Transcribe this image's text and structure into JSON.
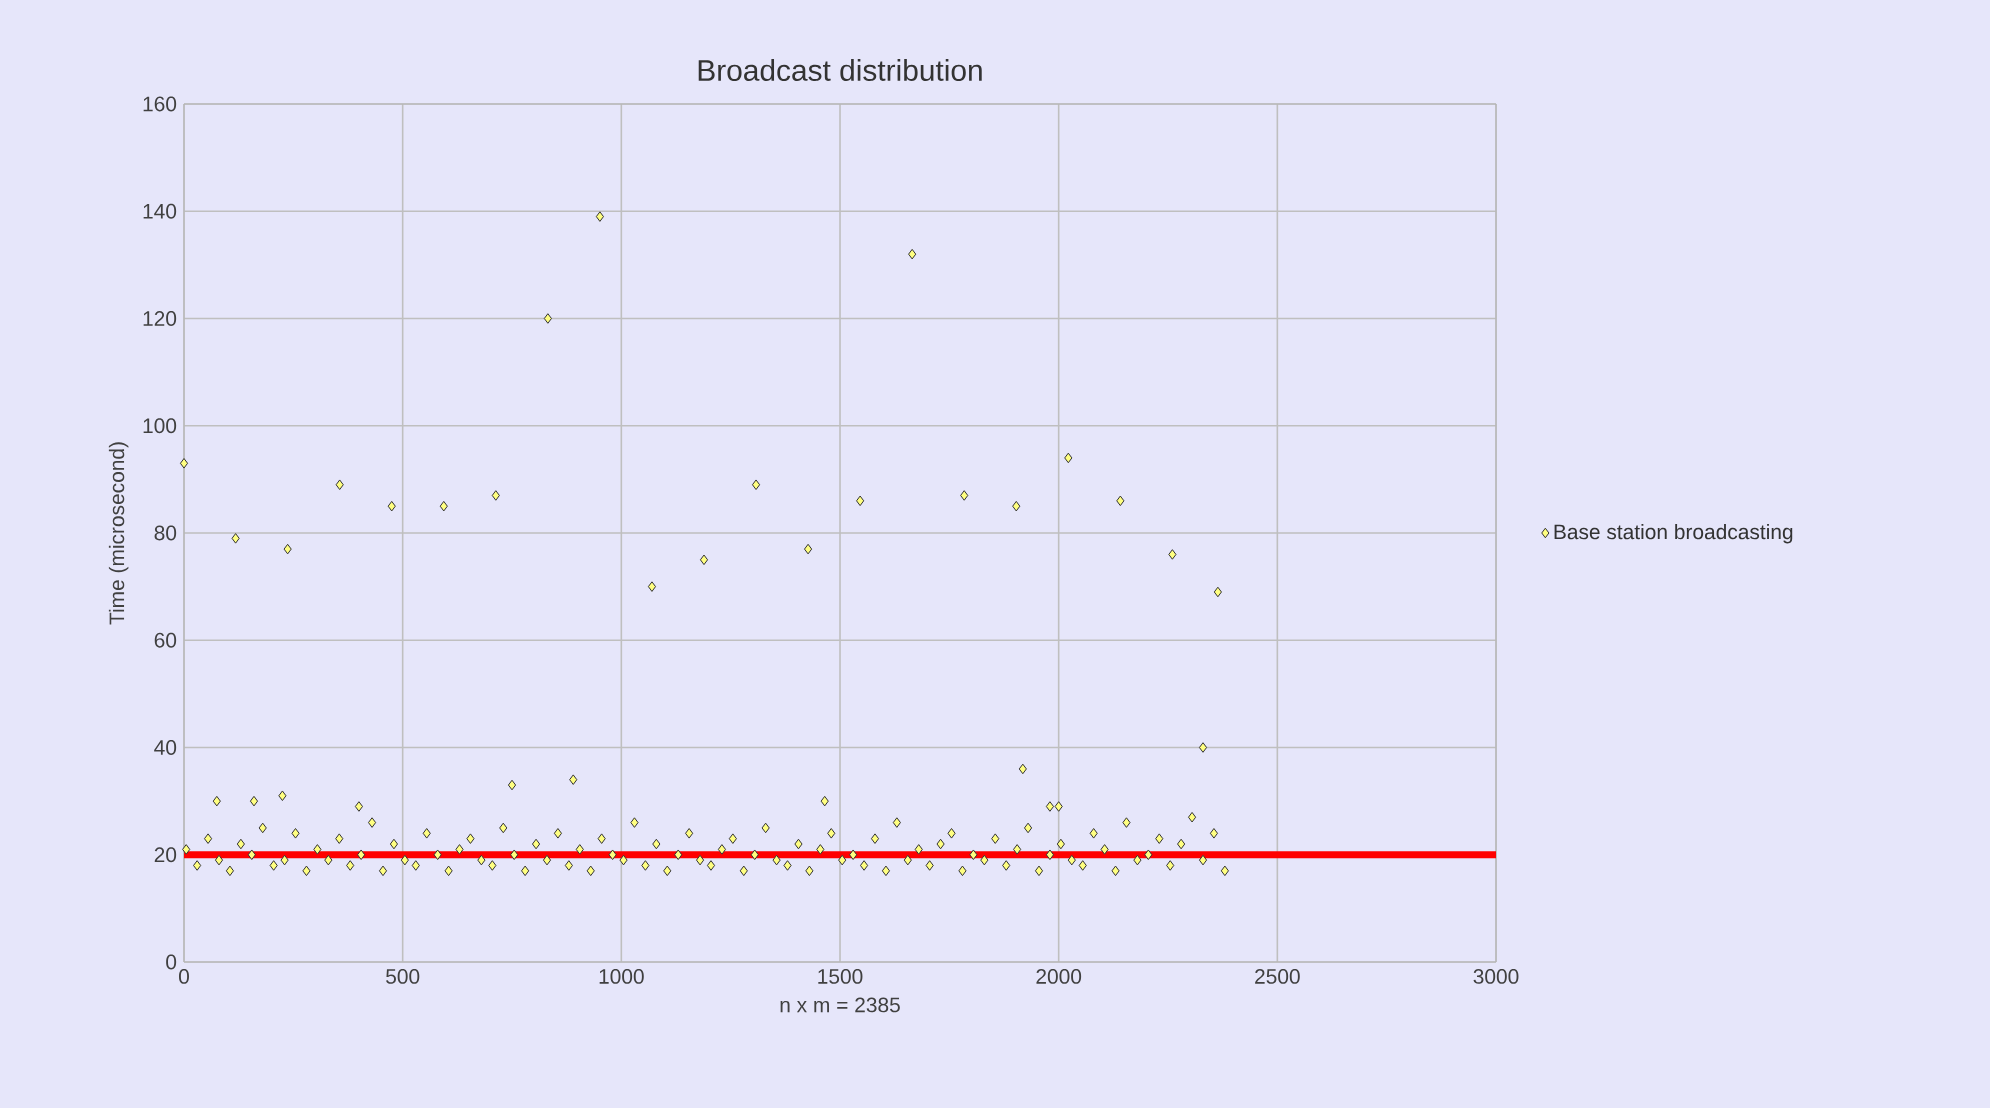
{
  "chart_data": {
    "type": "scatter",
    "title": "Broadcast distribution",
    "xlabel": "n x m = 2385",
    "ylabel": "Time (microsecond)",
    "xlim": [
      0,
      3000
    ],
    "xticks": [
      0,
      500,
      1000,
      1500,
      2000,
      2500,
      3000
    ],
    "ylim": [
      0,
      160
    ],
    "yticks": [
      0,
      20,
      40,
      60,
      80,
      100,
      120,
      140,
      160
    ],
    "grid": true,
    "legend": "right",
    "marker": "diamond",
    "ref_lines": [
      {
        "axis": "y",
        "value": 20,
        "color": "#ff0000"
      }
    ],
    "series": [
      {
        "name": "Base station broadcasting",
        "color": "#ffff80",
        "x": [
          5,
          30,
          55,
          80,
          105,
          130,
          155,
          180,
          205,
          230,
          255,
          280,
          305,
          330,
          355,
          380,
          405,
          430,
          455,
          480,
          505,
          530,
          555,
          580,
          605,
          630,
          655,
          680,
          705,
          730,
          755,
          780,
          805,
          830,
          855,
          880,
          905,
          930,
          955,
          980,
          1005,
          1030,
          1055,
          1080,
          1105,
          1130,
          1155,
          1180,
          1205,
          1230,
          1255,
          1280,
          1305,
          1330,
          1355,
          1380,
          1405,
          1430,
          1455,
          1480,
          1505,
          1530,
          1555,
          1580,
          1605,
          1630,
          1655,
          1680,
          1705,
          1730,
          1755,
          1780,
          1805,
          1830,
          1855,
          1880,
          1905,
          1930,
          1955,
          1980,
          2005,
          2030,
          2055,
          2080,
          2105,
          2130,
          2155,
          2180,
          2205,
          2230,
          2255,
          2280,
          2305,
          2330,
          2355,
          2380,
          0,
          118,
          237,
          356,
          475,
          594,
          713,
          832,
          951,
          1070,
          1189,
          1308,
          1427,
          1546,
          1665,
          1784,
          1903,
          2022,
          2141,
          2260,
          2364,
          2330,
          1918,
          890,
          750,
          1465,
          1980,
          2000,
          75,
          225,
          400,
          160
        ],
        "values": [
          21,
          18,
          23,
          19,
          17,
          22,
          20,
          25,
          18,
          19,
          24,
          17,
          21,
          19,
          23,
          18,
          20,
          26,
          17,
          22,
          19,
          18,
          24,
          20,
          17,
          21,
          23,
          19,
          18,
          25,
          20,
          17,
          22,
          19,
          24,
          18,
          21,
          17,
          23,
          20,
          19,
          26,
          18,
          22,
          17,
          20,
          24,
          19,
          18,
          21,
          23,
          17,
          20,
          25,
          19,
          18,
          22,
          17,
          21,
          24,
          19,
          20,
          18,
          23,
          17,
          26,
          19,
          21,
          18,
          22,
          24,
          17,
          20,
          19,
          23,
          18,
          21,
          25,
          17,
          20,
          22,
          19,
          18,
          24,
          21,
          17,
          26,
          19,
          20,
          23,
          18,
          22,
          27,
          19,
          24,
          17,
          93,
          79,
          77,
          89,
          85,
          85,
          87,
          120,
          139,
          70,
          75,
          89,
          77,
          86,
          132,
          87,
          85,
          94,
          86,
          76,
          69,
          40,
          36,
          34,
          33,
          30,
          29,
          29,
          30,
          31,
          29,
          30
        ]
      }
    ]
  }
}
